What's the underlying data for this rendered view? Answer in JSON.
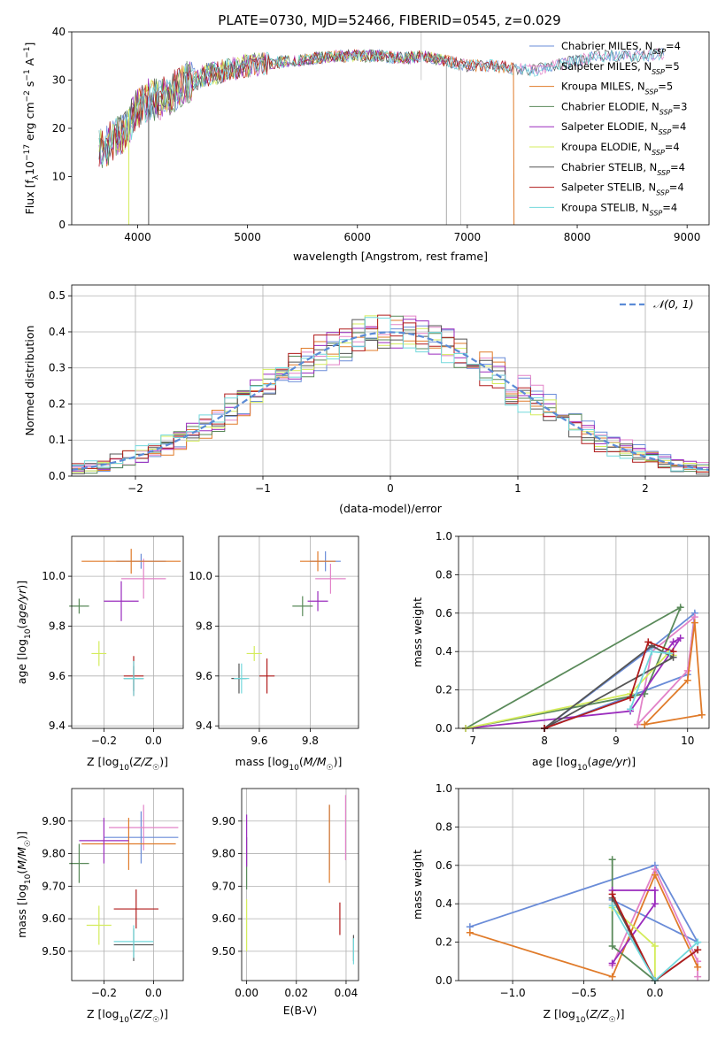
{
  "title": "PLATE=0730, MJD=52466, FIBERID=0545, z=0.029",
  "colors": [
    "#6a8cd8",
    "#e283c8",
    "#e07b2a",
    "#5a8a5a",
    "#9a2bbd",
    "#d4ec5c",
    "#555555",
    "#b11c1c",
    "#72d8dc"
  ],
  "legend": [
    {
      "label": "Chabrier MILES, N_SSP=4",
      "base": "Chabrier MILES, N",
      "sub": "SSP",
      "tail": "=4"
    },
    {
      "label": "Salpeter MILES, N_SSP=5",
      "base": "Salpeter MILES, N",
      "sub": "SSP",
      "tail": "=5"
    },
    {
      "label": "Kroupa MILES, N_SSP=5",
      "base": "Kroupa MILES, N",
      "sub": "SSP",
      "tail": "=5"
    },
    {
      "label": "Chabrier ELODIE, N_SSP=3",
      "base": "Chabrier ELODIE, N",
      "sub": "SSP",
      "tail": "=3"
    },
    {
      "label": "Salpeter ELODIE, N_SSP=4",
      "base": "Salpeter ELODIE, N",
      "sub": "SSP",
      "tail": "=4"
    },
    {
      "label": "Kroupa ELODIE, N_SSP=4",
      "base": "Kroupa ELODIE, N",
      "sub": "SSP",
      "tail": "=4"
    },
    {
      "label": "Chabrier STELIB, N_SSP=4",
      "base": "Chabrier STELIB, N",
      "sub": "SSP",
      "tail": "=4"
    },
    {
      "label": "Salpeter STELIB, N_SSP=4",
      "base": "Salpeter STELIB, N",
      "sub": "SSP",
      "tail": "=4"
    },
    {
      "label": "Kroupa STELIB, N_SSP=4",
      "base": "Kroupa STELIB, N",
      "sub": "SSP",
      "tail": "=4"
    }
  ],
  "chart_data": [
    {
      "id": "spectrum",
      "type": "line",
      "xlabel": "wavelength [Angstrom, rest frame]",
      "ylabel": "Flux [f_λ 10^-17 erg cm^-2 s^-1 A^-1]",
      "xlim": [
        3400,
        9200
      ],
      "ylim": [
        0,
        40
      ],
      "xticks": [
        4000,
        5000,
        6000,
        7000,
        8000,
        9000
      ],
      "yticks": [
        0,
        10,
        20,
        30,
        40
      ],
      "x": [
        3700,
        3800,
        3900,
        4000,
        4100,
        4200,
        4300,
        4400,
        4500,
        4600,
        4700,
        4800,
        5000,
        5200,
        5400,
        5600,
        5800,
        6000,
        6200,
        6400,
        6600,
        6800,
        7000,
        7200,
        7400,
        7600,
        7800,
        8000,
        8200,
        8400,
        8600,
        8800
      ],
      "y": [
        16,
        18,
        20,
        24,
        26,
        26,
        27,
        29,
        30,
        31,
        31.5,
        32,
        33,
        33.5,
        34,
        34.5,
        35,
        35,
        35,
        34.5,
        35,
        34,
        33,
        33,
        32.5,
        32,
        33,
        34,
        35,
        35,
        35,
        35.5
      ],
      "series": [
        {
          "name": "Chabrier MILES, N_SSP=4",
          "x_end": 8800
        },
        {
          "name": "Salpeter MILES, N_SSP=5",
          "x_end": 8800
        },
        {
          "name": "Kroupa MILES, N_SSP=5",
          "x_end": 7420
        },
        {
          "name": "Chabrier ELODIE, N_SSP=3",
          "x_end": 6800
        },
        {
          "name": "Salpeter ELODIE, N_SSP=4",
          "x_end": 6800
        },
        {
          "name": "Kroupa ELODIE, N_SSP=4",
          "x_end": 6800
        },
        {
          "name": "Chabrier STELIB, N_SSP=4",
          "x_end": 8800
        },
        {
          "name": "Salpeter STELIB, N_SSP=4",
          "x_end": 7420
        },
        {
          "name": "Kroupa STELIB, N_SSP=4",
          "x_end": 8800
        }
      ]
    },
    {
      "id": "residuals",
      "type": "line",
      "xlabel": "(data-model)/error",
      "ylabel": "Normed distribution",
      "xlim": [
        -2.5,
        2.5
      ],
      "ylim": [
        0,
        0.53
      ],
      "xticks": [
        -2,
        -1,
        0,
        1,
        2
      ],
      "yticks": [
        0.0,
        0.1,
        0.2,
        0.3,
        0.4,
        0.5
      ],
      "legend": "𝒩(0, 1)",
      "bin_width": 0.1
    },
    {
      "id": "age_Z",
      "type": "scatter",
      "xlabel": "Z [log10(Z/Z☉)]",
      "ylabel": "age [log10(age/yr)]",
      "xlim": [
        -0.33,
        0.12
      ],
      "ylim": [
        9.39,
        10.16
      ],
      "xticks": [
        -0.2,
        0.0
      ],
      "yticks": [
        9.4,
        9.6,
        9.8,
        10.0
      ],
      "points": [
        {
          "x": -0.05,
          "y": 10.06,
          "xerr": 0.1,
          "yerr": 0.03
        },
        {
          "x": -0.04,
          "y": 9.99,
          "xerr": 0.09,
          "yerr": 0.08
        },
        {
          "x": -0.09,
          "y": 10.06,
          "xerr": 0.2,
          "yerr": 0.05
        },
        {
          "x": -0.3,
          "y": 9.88,
          "xerr": 0.04,
          "yerr": 0.03
        },
        {
          "x": -0.13,
          "y": 9.9,
          "xerr": 0.07,
          "yerr": 0.08
        },
        {
          "x": -0.22,
          "y": 9.69,
          "xerr": 0.03,
          "yerr": 0.05
        },
        {
          "x": -0.08,
          "y": 9.59,
          "xerr": 0.04,
          "yerr": 0.05
        },
        {
          "x": -0.08,
          "y": 9.6,
          "xerr": 0.04,
          "yerr": 0.08
        },
        {
          "x": -0.08,
          "y": 9.59,
          "xerr": 0.04,
          "yerr": 0.07
        }
      ]
    },
    {
      "id": "age_mass",
      "type": "scatter",
      "xlabel": "mass [log10(M/M☉)]",
      "ylabel": "",
      "xlim": [
        9.44,
        9.99
      ],
      "ylim": [
        9.39,
        10.16
      ],
      "xticks": [
        9.6,
        9.8
      ],
      "yticks": [
        9.4,
        9.6,
        9.8,
        10.0
      ],
      "points": [
        {
          "x": 9.86,
          "y": 10.06,
          "xerr": 0.06,
          "yerr": 0.04
        },
        {
          "x": 9.88,
          "y": 9.99,
          "xerr": 0.06,
          "yerr": 0.06
        },
        {
          "x": 9.83,
          "y": 10.06,
          "xerr": 0.07,
          "yerr": 0.04
        },
        {
          "x": 9.77,
          "y": 9.88,
          "xerr": 0.04,
          "yerr": 0.04
        },
        {
          "x": 9.83,
          "y": 9.9,
          "xerr": 0.04,
          "yerr": 0.04
        },
        {
          "x": 9.58,
          "y": 9.69,
          "xerr": 0.03,
          "yerr": 0.03
        },
        {
          "x": 9.52,
          "y": 9.59,
          "xerr": 0.03,
          "yerr": 0.06
        },
        {
          "x": 9.63,
          "y": 9.6,
          "xerr": 0.03,
          "yerr": 0.07
        },
        {
          "x": 9.53,
          "y": 9.59,
          "xerr": 0.03,
          "yerr": 0.06
        }
      ]
    },
    {
      "id": "mw_age",
      "type": "line",
      "xlabel": "age [log10(age/yr)]",
      "ylabel": "mass weight",
      "xlim": [
        6.8,
        10.3
      ],
      "ylim": [
        0,
        1
      ],
      "xticks": [
        7,
        8,
        9,
        10
      ],
      "yticks": [
        0.0,
        0.2,
        0.4,
        0.6,
        0.8,
        1.0
      ],
      "series": [
        {
          "name": "Chabrier MILES",
          "x": [
            8.0,
            10.0,
            10.1,
            9.5,
            8.0
          ],
          "y": [
            0.0,
            0.28,
            0.6,
            0.42,
            0.0
          ]
        },
        {
          "name": "Salpeter MILES",
          "x": [
            9.3,
            10.0,
            10.1,
            9.5,
            9.3
          ],
          "y": [
            0.02,
            0.3,
            0.58,
            0.4,
            0.02
          ]
        },
        {
          "name": "Kroupa MILES",
          "x": [
            9.4,
            10.0,
            10.1,
            10.2,
            9.4
          ],
          "y": [
            0.02,
            0.25,
            0.55,
            0.07,
            0.02
          ]
        },
        {
          "name": "Chabrier ELODIE",
          "x": [
            6.9,
            9.9,
            9.4,
            6.9
          ],
          "y": [
            0.0,
            0.63,
            0.18,
            0.0
          ]
        },
        {
          "name": "Salpeter ELODIE",
          "x": [
            6.9,
            9.2,
            9.9,
            9.8,
            9.7
          ],
          "y": [
            0.0,
            0.09,
            0.47,
            0.45,
            0.4
          ]
        },
        {
          "name": "Kroupa ELODIE",
          "x": [
            6.9,
            9.2,
            9.75,
            9.8
          ],
          "y": [
            0.0,
            0.18,
            0.4,
            0.38
          ]
        },
        {
          "name": "Chabrier STELIB",
          "x": [
            8.0,
            9.5,
            9.8,
            8.0
          ],
          "y": [
            0.0,
            0.43,
            0.37,
            0.0
          ]
        },
        {
          "name": "Salpeter STELIB",
          "x": [
            8.0,
            9.2,
            9.45,
            9.8
          ],
          "y": [
            0.0,
            0.16,
            0.45,
            0.4
          ]
        },
        {
          "name": "Kroupa STELIB",
          "x": [
            9.2,
            9.5,
            9.75
          ],
          "y": [
            0.1,
            0.4,
            0.39
          ]
        }
      ]
    },
    {
      "id": "mass_Z",
      "type": "scatter",
      "xlabel": "Z [log10(Z/Z☉)]",
      "ylabel": "mass [log10(M/M☉)]",
      "xlim": [
        -0.33,
        0.12
      ],
      "ylim": [
        9.41,
        10.0
      ],
      "xticks": [
        -0.2,
        0.0
      ],
      "yticks": [
        9.5,
        9.6,
        9.7,
        9.8,
        9.9
      ],
      "points": [
        {
          "x": -0.05,
          "y": 9.85,
          "xerr": 0.15,
          "yerr": 0.08
        },
        {
          "x": -0.04,
          "y": 9.88,
          "xerr": 0.14,
          "yerr": 0.07
        },
        {
          "x": -0.1,
          "y": 9.83,
          "xerr": 0.19,
          "yerr": 0.08
        },
        {
          "x": -0.3,
          "y": 9.77,
          "xerr": 0.04,
          "yerr": 0.06
        },
        {
          "x": -0.2,
          "y": 9.84,
          "xerr": 0.1,
          "yerr": 0.07
        },
        {
          "x": -0.22,
          "y": 9.58,
          "xerr": 0.05,
          "yerr": 0.06
        },
        {
          "x": -0.08,
          "y": 9.52,
          "xerr": 0.08,
          "yerr": 0.05
        },
        {
          "x": -0.07,
          "y": 9.63,
          "xerr": 0.09,
          "yerr": 0.06
        },
        {
          "x": -0.08,
          "y": 9.53,
          "xerr": 0.08,
          "yerr": 0.05
        }
      ]
    },
    {
      "id": "mass_ebv",
      "type": "scatter",
      "xlabel": "E(B-V)",
      "ylabel": "",
      "xlim": [
        -0.002,
        0.045
      ],
      "ylim": [
        9.41,
        10.0
      ],
      "xticks": [
        0.0,
        0.02,
        0.04
      ],
      "yticks": [
        9.5,
        9.6,
        9.7,
        9.8,
        9.9
      ],
      "points": [
        {
          "x": 0.0333,
          "y": 9.85,
          "yerr": 0.1
        },
        {
          "x": 0.0398,
          "y": 9.88,
          "yerr": 0.1
        },
        {
          "x": 0.0333,
          "y": 9.83,
          "yerr": 0.12
        },
        {
          "x": 0.0,
          "y": 9.77,
          "yerr": 0.08
        },
        {
          "x": 0.0,
          "y": 9.84,
          "yerr": 0.08
        },
        {
          "x": 0.0,
          "y": 9.58,
          "yerr": 0.08
        },
        {
          "x": 0.043,
          "y": 9.51,
          "yerr": 0.04
        },
        {
          "x": 0.0375,
          "y": 9.6,
          "yerr": 0.05
        },
        {
          "x": 0.043,
          "y": 9.5,
          "yerr": 0.04
        }
      ]
    },
    {
      "id": "mw_Z",
      "type": "line",
      "xlabel": "Z [log10(Z/Z☉)]",
      "ylabel": "mass weight",
      "xlim": [
        -1.38,
        0.38
      ],
      "ylim": [
        0,
        1
      ],
      "xticks": [
        -1.0,
        -0.5,
        0.0
      ],
      "yticks": [
        0.0,
        0.2,
        0.4,
        0.6,
        0.8,
        1.0
      ],
      "series": [
        {
          "name": "Chabrier MILES",
          "x": [
            -1.3,
            0.0,
            0.3,
            -0.3
          ],
          "y": [
            0.28,
            0.6,
            0.2,
            0.42
          ]
        },
        {
          "name": "Salpeter MILES",
          "x": [
            -0.3,
            0.0,
            0.3,
            0.3
          ],
          "y": [
            0.08,
            0.58,
            0.1,
            0.02
          ]
        },
        {
          "name": "Kroupa MILES",
          "x": [
            -1.3,
            -0.3,
            0.0,
            0.3
          ],
          "y": [
            0.25,
            0.02,
            0.55,
            0.07
          ]
        },
        {
          "name": "Chabrier ELODIE",
          "x": [
            -0.3,
            -0.3,
            0.0
          ],
          "y": [
            0.63,
            0.18,
            0.0
          ]
        },
        {
          "name": "Salpeter ELODIE",
          "x": [
            -0.3,
            0.0,
            0.0,
            -0.3
          ],
          "y": [
            0.47,
            0.47,
            0.4,
            0.09
          ]
        },
        {
          "name": "Kroupa ELODIE",
          "x": [
            -0.3,
            0.0,
            0.0
          ],
          "y": [
            0.38,
            0.18,
            0.0
          ]
        },
        {
          "name": "Chabrier STELIB",
          "x": [
            -0.3,
            0.0,
            0.3
          ],
          "y": [
            0.43,
            0.0,
            0.16
          ]
        },
        {
          "name": "Salpeter STELIB",
          "x": [
            -0.3,
            0.0,
            0.3
          ],
          "y": [
            0.45,
            0.0,
            0.16
          ]
        },
        {
          "name": "Kroupa STELIB",
          "x": [
            -0.3,
            0.0,
            0.3
          ],
          "y": [
            0.39,
            0.0,
            0.2
          ]
        }
      ]
    }
  ]
}
